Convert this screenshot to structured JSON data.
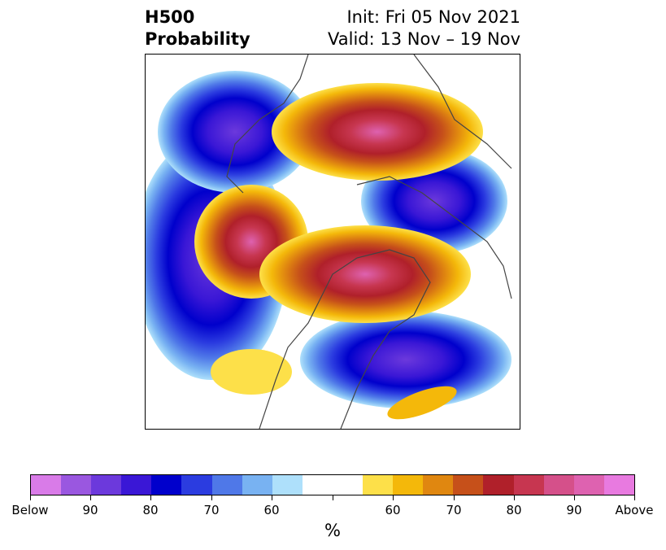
{
  "title": {
    "left_line1": "H500",
    "left_line2": "Probability",
    "right_line1": "Init: Fri 05 Nov 2021",
    "right_line2": "Valid: 13 Nov – 19 Nov"
  },
  "colorbar": {
    "unit": "%",
    "colors": [
      "#d97be8",
      "#9a57e0",
      "#6c39dc",
      "#3a17d6",
      "#0000cc",
      "#2b3ce0",
      "#4f78e8",
      "#78b2f2",
      "#aee0fb",
      "#ffffff",
      "#ffffff",
      "#fde049",
      "#f4b80a",
      "#e08710",
      "#c6501a",
      "#b0202a",
      "#c73650",
      "#d5508a",
      "#de62b0",
      "#e87ae0"
    ],
    "labels": [
      "Below",
      "90",
      "80",
      "70",
      "60",
      "60",
      "70",
      "80",
      "90",
      "Above"
    ]
  },
  "legend_meaning": {
    "below_colors": "blue-purple",
    "above_colors": "yellow-red-pink"
  }
}
